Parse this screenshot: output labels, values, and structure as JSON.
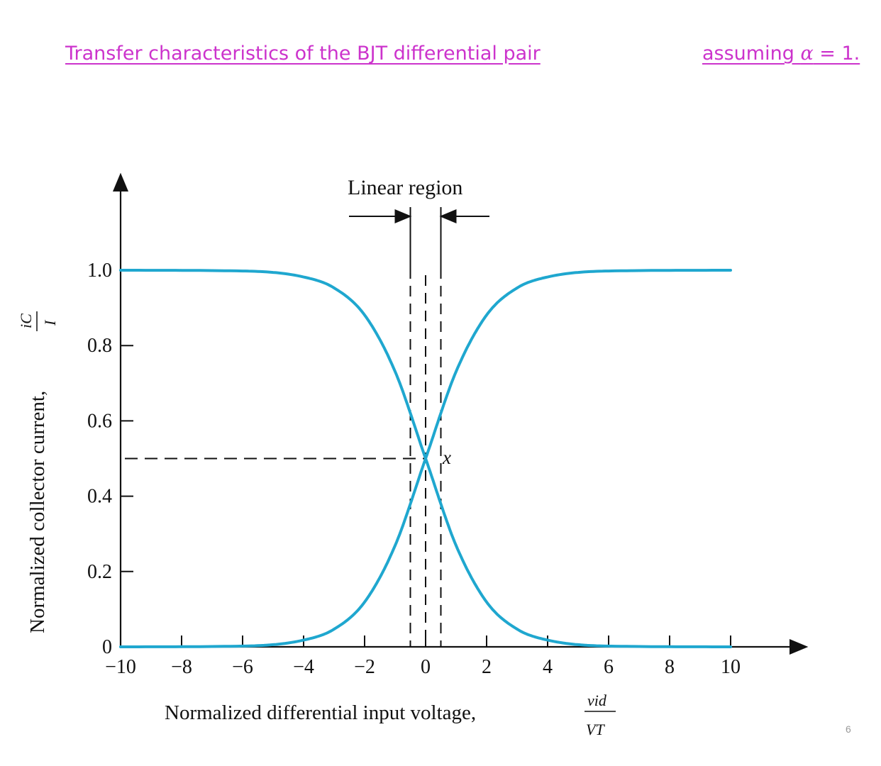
{
  "slide": {
    "title": "Transfer characteristics of the BJT differential pair",
    "note_prefix": "assuming ",
    "note_symbol": "α",
    "note_suffix": " = 1.",
    "page_number": "6"
  },
  "colors": {
    "curve": "#1fa7cf",
    "axis": "#111111",
    "title": "#cc33cc"
  },
  "chart_data": {
    "type": "line",
    "xlabel": "Normalized differential input voltage,",
    "xlabel_fraction": {
      "numerator": "vid",
      "denominator": "VT"
    },
    "ylabel": "Normalized collector current,",
    "ylabel_fraction": {
      "numerator": "iC",
      "denominator": "I"
    },
    "xlim": [
      -10,
      10
    ],
    "ylim": [
      0,
      1.0
    ],
    "x_ticks": [
      "−10",
      "−8",
      "−6",
      "−4",
      "−2",
      "0",
      "2",
      "4",
      "6",
      "8",
      "10"
    ],
    "y_ticks": [
      "0",
      "0.2",
      "0.4",
      "0.6",
      "0.8",
      "1.0"
    ],
    "series": [
      {
        "x": [
          -10,
          -6,
          -4,
          -3,
          -2,
          -1,
          0,
          1,
          2,
          3,
          4,
          6,
          10
        ],
        "y": [
          0.0,
          0.002,
          0.018,
          0.047,
          0.119,
          0.269,
          0.5,
          0.731,
          0.881,
          0.953,
          0.982,
          0.998,
          1.0
        ]
      },
      {
        "x": [
          -10,
          -6,
          -4,
          -3,
          -2,
          -1,
          0,
          1,
          2,
          3,
          4,
          6,
          10
        ],
        "y": [
          1.0,
          0.998,
          0.982,
          0.953,
          0.881,
          0.731,
          0.5,
          0.269,
          0.119,
          0.047,
          0.018,
          0.002,
          0.0
        ]
      }
    ],
    "annotations": {
      "linear_region_label": "Linear region",
      "crossing_label": "x",
      "linear_region_x": [
        -0.5,
        0.5
      ],
      "crossing_point": [
        0,
        0.5
      ]
    },
    "grid": false,
    "legend": "none"
  }
}
